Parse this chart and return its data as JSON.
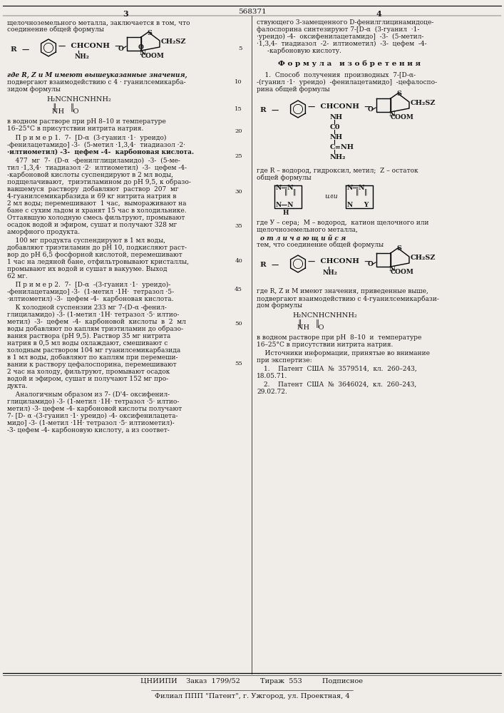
{
  "title": "568371",
  "page_left": "3",
  "page_right": "4",
  "bg_color": "#f0ede8",
  "text_color": "#1a1a1a",
  "footer_line1": "ЦНИИПИ    Заказ  1799/52         Тираж  553         Подписное",
  "footer_line2": "Филиал ППП \"Патент\", г. Ужгород, ул. Проектная, 4"
}
